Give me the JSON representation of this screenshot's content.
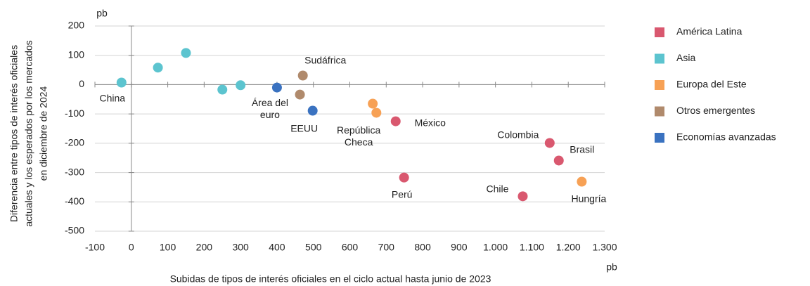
{
  "chart_data": {
    "type": "scatter",
    "x_label": "Subidas de tipos de interés oficiales en el ciclo actual hasta junio de 2023",
    "x_unit": "pb",
    "y_label": [
      "Diferencia entre tipos de interés oficiales",
      "actuales y los esperados por los mercados",
      "en diciembre de 2024"
    ],
    "y_unit": "pb",
    "xlim": [
      -100,
      1300
    ],
    "xticks": [
      -100,
      0,
      100,
      200,
      300,
      400,
      500,
      600,
      700,
      800,
      900,
      {
        "value": 1000,
        "label": "1.000"
      },
      {
        "value": 1100,
        "label": "1.100"
      },
      {
        "value": 1200,
        "label": "1.200"
      },
      {
        "value": 1300,
        "label": "1.300"
      }
    ],
    "ylim": [
      -500,
      200
    ],
    "yticks": [
      -500,
      -400,
      -300,
      -200,
      -100,
      0,
      100,
      200
    ],
    "grid": true,
    "series": [
      {
        "name": "América Latina",
        "color": "#d9586f",
        "x": [
          726,
          749,
          1149,
          1174,
          1075
        ],
        "values": [
          -125,
          -317,
          -199,
          -259,
          -381
        ],
        "labels": [
          "México",
          "Perú",
          "Colombia",
          "Brasil",
          "Chile"
        ]
      },
      {
        "name": "Asia",
        "color": "#5cc4cf",
        "x": [
          -27,
          73,
          150,
          250,
          300
        ],
        "values": [
          7,
          58,
          108,
          -17,
          -2
        ],
        "labels": [
          "China",
          null,
          null,
          null,
          null
        ]
      },
      {
        "name": "Europa del Este",
        "color": "#f7a155",
        "x": [
          663,
          673,
          1237
        ],
        "values": [
          -65,
          -96,
          -331
        ],
        "labels": [
          "República\nCheca",
          null,
          "Hungría"
        ]
      },
      {
        "name": "Otros emergentes",
        "color": "#b08a6c",
        "x": [
          471,
          463
        ],
        "values": [
          31,
          -34
        ],
        "labels": [
          "Sudáfrica",
          null
        ]
      },
      {
        "name": "Economías avanzadas",
        "color": "#3a72c0",
        "x": [
          400,
          498
        ],
        "values": [
          -10,
          -89
        ],
        "labels": [
          "Área del\neuro",
          "EEUU"
        ]
      }
    ]
  }
}
